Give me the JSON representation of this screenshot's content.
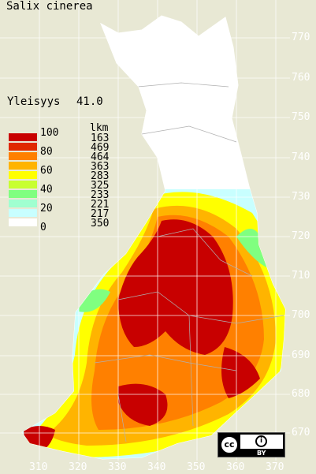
{
  "title": "Salix cinerea",
  "frequency": {
    "label": "Yleisyys",
    "value": "41.0"
  },
  "legend": {
    "count_header": "lkm",
    "classes": [
      {
        "pct": "100",
        "count": "163",
        "color": "#c80000"
      },
      {
        "pct": "80",
        "count": "469",
        "color": "#e02800"
      },
      {
        "pct": "",
        "count": "464",
        "color": "#ff8000"
      },
      {
        "pct": "60",
        "count": "363",
        "color": "#ffb400"
      },
      {
        "pct": "",
        "count": "283",
        "color": "#ffff00"
      },
      {
        "pct": "40",
        "count": "325",
        "color": "#c8ff30"
      },
      {
        "pct": "",
        "count": "233",
        "color": "#80ff80"
      },
      {
        "pct": "20",
        "count": "221",
        "color": "#a0ffd0"
      },
      {
        "pct": "",
        "count": "217",
        "color": "#c8ffff"
      },
      {
        "pct": "0",
        "count": "350",
        "color": "#ffffff"
      }
    ]
  },
  "grid_y_ticks": [
    "770",
    "760",
    "750",
    "740",
    "730",
    "720",
    "710",
    "700",
    "690",
    "680",
    "670"
  ],
  "grid_x_ticks": [
    "310",
    "320",
    "330",
    "340",
    "350",
    "360",
    "370"
  ],
  "license_icon": "cc-by-icon",
  "license": {
    "cc": "cc",
    "by": "BY",
    "by_symbol": "i"
  }
}
